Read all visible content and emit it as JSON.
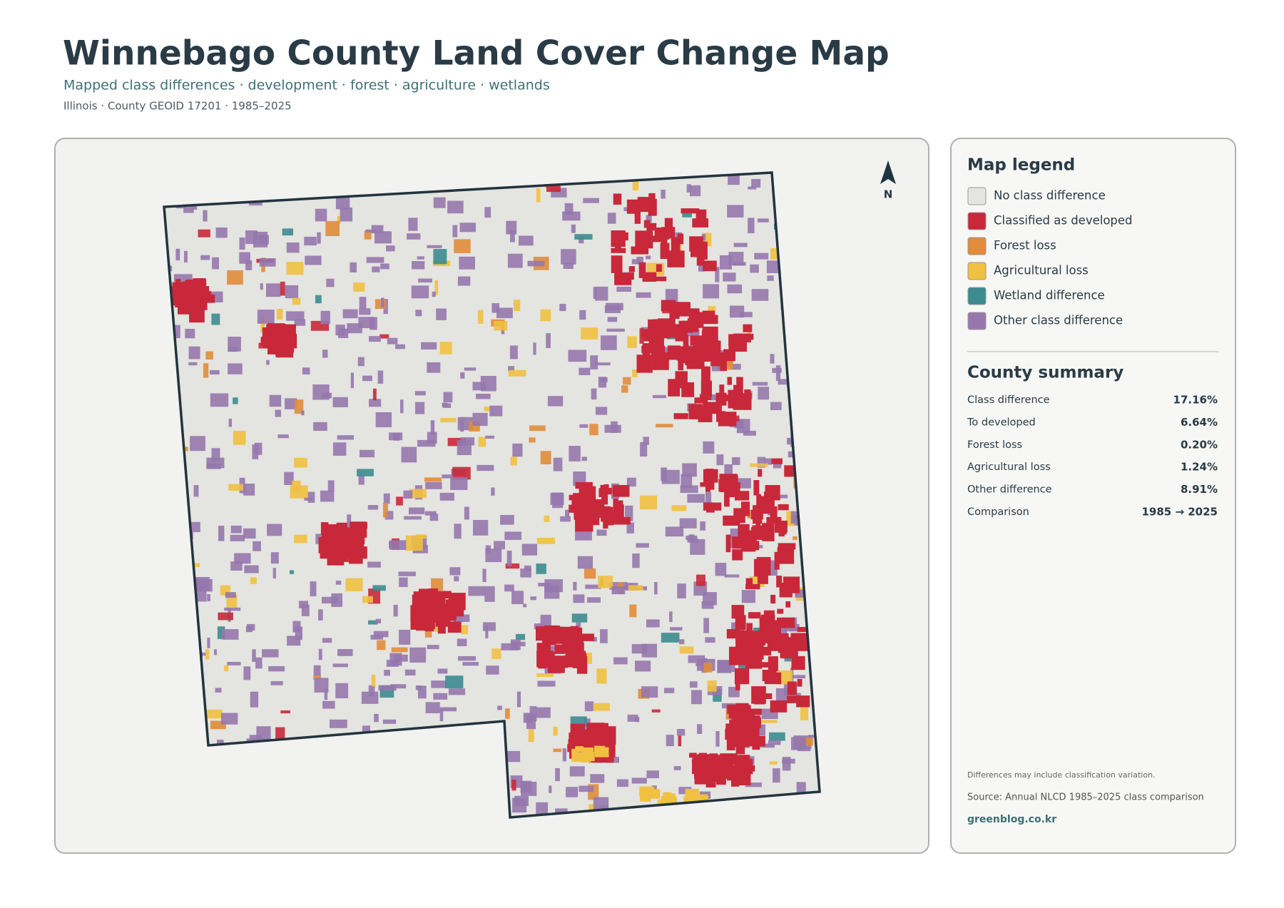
{
  "header": {
    "title": "Winnebago County Land Cover Change Map",
    "subtitle": "Mapped class differences · development · forest · agriculture · wetlands",
    "meta": "Illinois · County GEOID 17201 · 1985–2025"
  },
  "map": {
    "north_label": "N",
    "background_color": "#e4e4e0",
    "outline_color": "#22343f"
  },
  "legend": {
    "title": "Map legend",
    "items": [
      {
        "label": "No class difference",
        "color": "#e4e4e0"
      },
      {
        "label": "Classified as developed",
        "color": "#c8283a"
      },
      {
        "label": "Forest loss",
        "color": "#e08c3a"
      },
      {
        "label": "Agricultural loss",
        "color": "#f0c040"
      },
      {
        "label": "Wetland difference",
        "color": "#3b8b8f"
      },
      {
        "label": "Other class difference",
        "color": "#9577ad"
      }
    ]
  },
  "summary": {
    "title": "County summary",
    "rows": [
      {
        "label": "Class difference",
        "value": "17.16%"
      },
      {
        "label": "To developed",
        "value": "6.64%"
      },
      {
        "label": "Forest loss",
        "value": "0.20%"
      },
      {
        "label": "Agricultural loss",
        "value": "1.24%"
      },
      {
        "label": "Other difference",
        "value": "8.91%"
      },
      {
        "label": "Comparison",
        "value": "1985 → 2025"
      }
    ]
  },
  "footer": {
    "note": "Differences may include classification variation.",
    "source": "Source: Annual NLCD 1985–2025 class comparison",
    "credit": "greenblog.co.kr"
  }
}
